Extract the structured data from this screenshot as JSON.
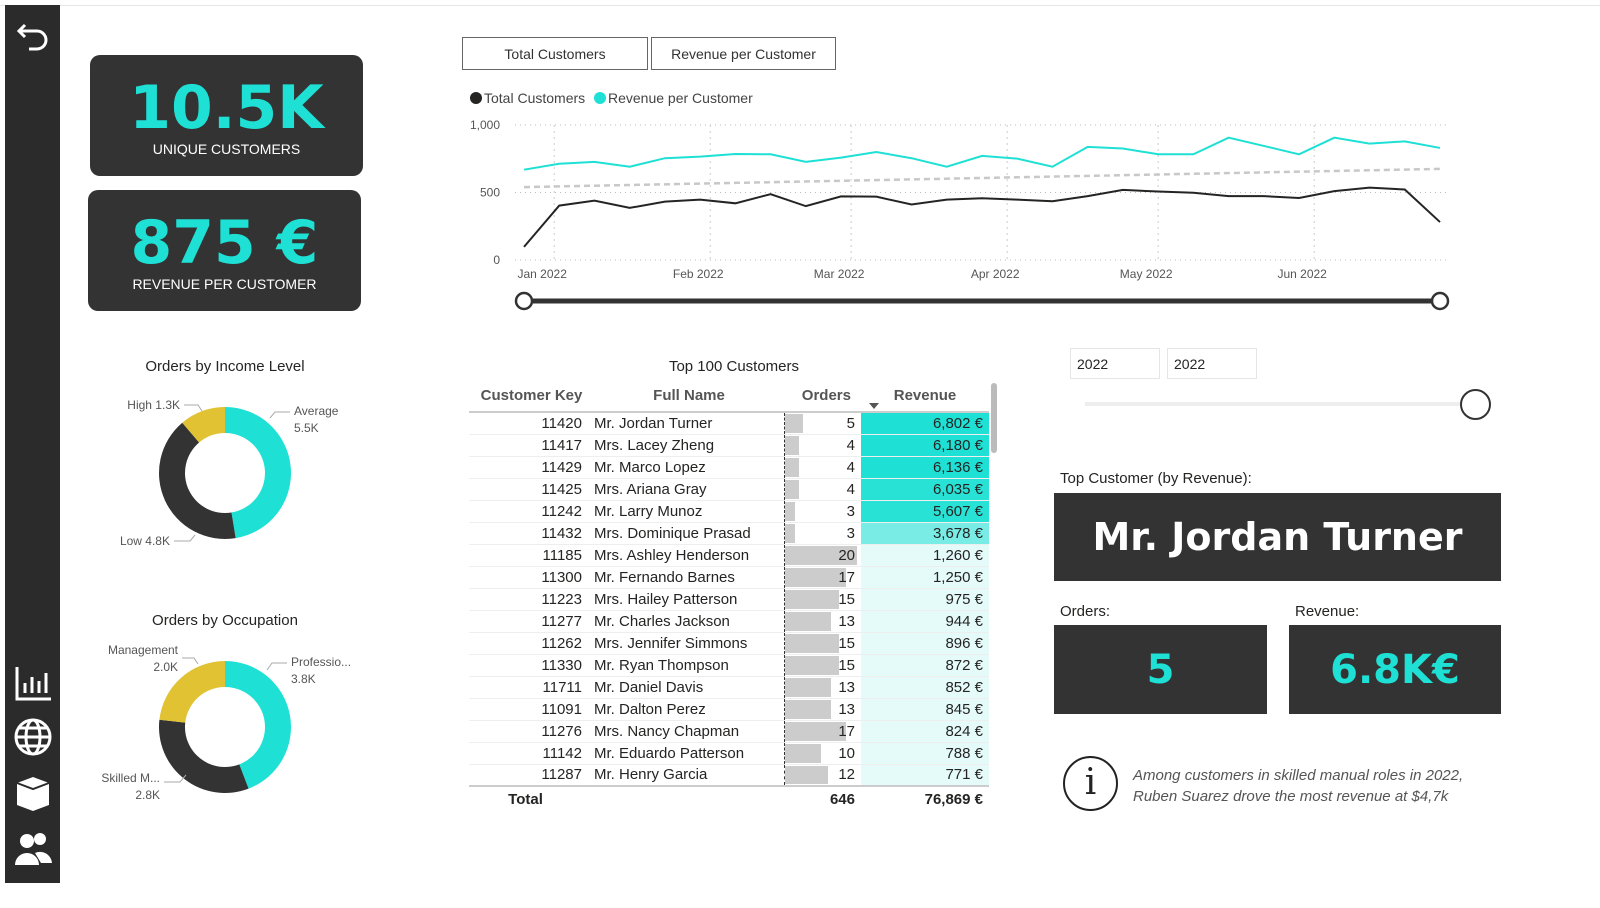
{
  "sidebar": {
    "icons": [
      "back-arrow-icon",
      "bar-chart-icon",
      "globe-icon",
      "box-icon",
      "people-icon"
    ]
  },
  "kpis": [
    {
      "value": "10.5K",
      "label": "UNIQUE CUSTOMERS"
    },
    {
      "value": "875 €",
      "label": "REVENUE PER CUSTOMER"
    }
  ],
  "toggle_buttons": [
    "Total Customers",
    "Revenue per Customer"
  ],
  "colors": {
    "accent": "#1EE0D4",
    "dark": "#333333",
    "gold": "#E1C233",
    "grey": "#CCCCCC"
  },
  "chart_data": [
    {
      "type": "line",
      "legend": [
        "Total Customers",
        "Revenue per Customer"
      ],
      "legend_position": "top-left",
      "x": [
        "2021-12-26",
        "2022-01-02",
        "2022-01-09",
        "2022-01-16",
        "2022-01-23",
        "2022-01-30",
        "2022-02-06",
        "2022-02-13",
        "2022-02-20",
        "2022-02-27",
        "2022-03-06",
        "2022-03-13",
        "2022-03-20",
        "2022-03-27",
        "2022-04-03",
        "2022-04-10",
        "2022-04-17",
        "2022-04-24",
        "2022-05-01",
        "2022-05-08",
        "2022-05-15",
        "2022-05-22",
        "2022-05-29",
        "2022-06-05",
        "2022-06-12",
        "2022-06-19",
        "2022-06-26"
      ],
      "xticks": [
        "Jan 2022",
        "Feb 2022",
        "Mar 2022",
        "Apr 2022",
        "May 2022",
        "Jun 2022"
      ],
      "yticks": [
        "0",
        "500",
        "1,000"
      ],
      "ylim": [
        0,
        1000
      ],
      "grid": true,
      "series": [
        {
          "name": "Total Customers",
          "color": "#252423",
          "values": [
            97,
            403,
            440,
            386,
            432,
            447,
            420,
            488,
            399,
            471,
            469,
            411,
            447,
            457,
            447,
            435,
            473,
            519,
            507,
            498,
            473,
            473,
            459,
            510,
            536,
            522,
            281
          ]
        },
        {
          "name": "Revenue per Customer",
          "color": "#1EE0D4",
          "values": [
            669,
            713,
            727,
            691,
            754,
            766,
            785,
            783,
            727,
            758,
            800,
            754,
            691,
            771,
            751,
            691,
            838,
            826,
            783,
            783,
            906,
            845,
            783,
            906,
            862,
            879,
            830
          ]
        }
      ],
      "trend": {
        "start": 540,
        "end": 675
      }
    },
    {
      "type": "pie",
      "title": "Orders by Income Level",
      "categories": [
        "Average",
        "Low",
        "High"
      ],
      "values": [
        5.5,
        4.8,
        1.3
      ],
      "labels": [
        "Average 5.5K",
        "Low 4.8K",
        "High 1.3K"
      ],
      "colors": [
        "#1EE0D4",
        "#333333",
        "#E1C233"
      ]
    },
    {
      "type": "pie",
      "title": "Orders by Occupation",
      "categories": [
        "Professio...",
        "Skilled M...",
        "Management"
      ],
      "values": [
        3.8,
        2.8,
        2.0
      ],
      "labels": [
        "3.8K",
        "2.8K",
        "2.0K"
      ],
      "colors": [
        "#1EE0D4",
        "#333333",
        "#E1C233"
      ]
    }
  ],
  "table": {
    "title": "Top 100 Customers",
    "headers": [
      "Customer Key",
      "Full Name",
      "Orders",
      "Revenue"
    ],
    "rows": [
      [
        "11420",
        "Mr. Jordan Turner",
        5,
        "6,802 €",
        6802
      ],
      [
        "11417",
        "Mrs. Lacey Zheng",
        4,
        "6,180 €",
        6180
      ],
      [
        "11429",
        "Mr. Marco Lopez",
        4,
        "6,136 €",
        6136
      ],
      [
        "11425",
        "Mrs. Ariana Gray",
        4,
        "6,035 €",
        6035
      ],
      [
        "11242",
        "Mr. Larry Munoz",
        3,
        "5,607 €",
        5607
      ],
      [
        "11432",
        "Mrs. Dominique Prasad",
        3,
        "3,678 €",
        3678
      ],
      [
        "11185",
        "Mrs. Ashley Henderson",
        20,
        "1,260 €",
        1260
      ],
      [
        "11300",
        "Mr. Fernando Barnes",
        17,
        "1,250 €",
        1250
      ],
      [
        "11223",
        "Mrs. Hailey Patterson",
        15,
        "975 €",
        975
      ],
      [
        "11277",
        "Mr. Charles Jackson",
        13,
        "944 €",
        944
      ],
      [
        "11262",
        "Mrs. Jennifer Simmons",
        15,
        "896 €",
        896
      ],
      [
        "11330",
        "Mr. Ryan Thompson",
        15,
        "872 €",
        872
      ],
      [
        "11711",
        "Mr. Daniel Davis",
        13,
        "852 €",
        852
      ],
      [
        "11091",
        "Mr. Dalton Perez",
        13,
        "845 €",
        845
      ],
      [
        "11276",
        "Mrs. Nancy Chapman",
        17,
        "824 €",
        824
      ],
      [
        "11142",
        "Mr. Eduardo Patterson",
        10,
        "788 €",
        788
      ],
      [
        "11287",
        "Mr. Henry Garcia",
        12,
        "771 €",
        771
      ]
    ],
    "total": {
      "label": "Total",
      "orders": "646",
      "revenue": "76,869 €"
    }
  },
  "year_slicer": {
    "from": "2022",
    "to": "2022"
  },
  "top_customer": {
    "label": "Top Customer (by Revenue):",
    "name": "Mr. Jordan Turner",
    "orders_label": "Orders:",
    "orders": "5",
    "revenue_label": "Revenue:",
    "revenue": "6.8K€"
  },
  "insight": "Among customers in skilled manual roles in 2022, Ruben Suarez drove the most revenue at $4,7k"
}
